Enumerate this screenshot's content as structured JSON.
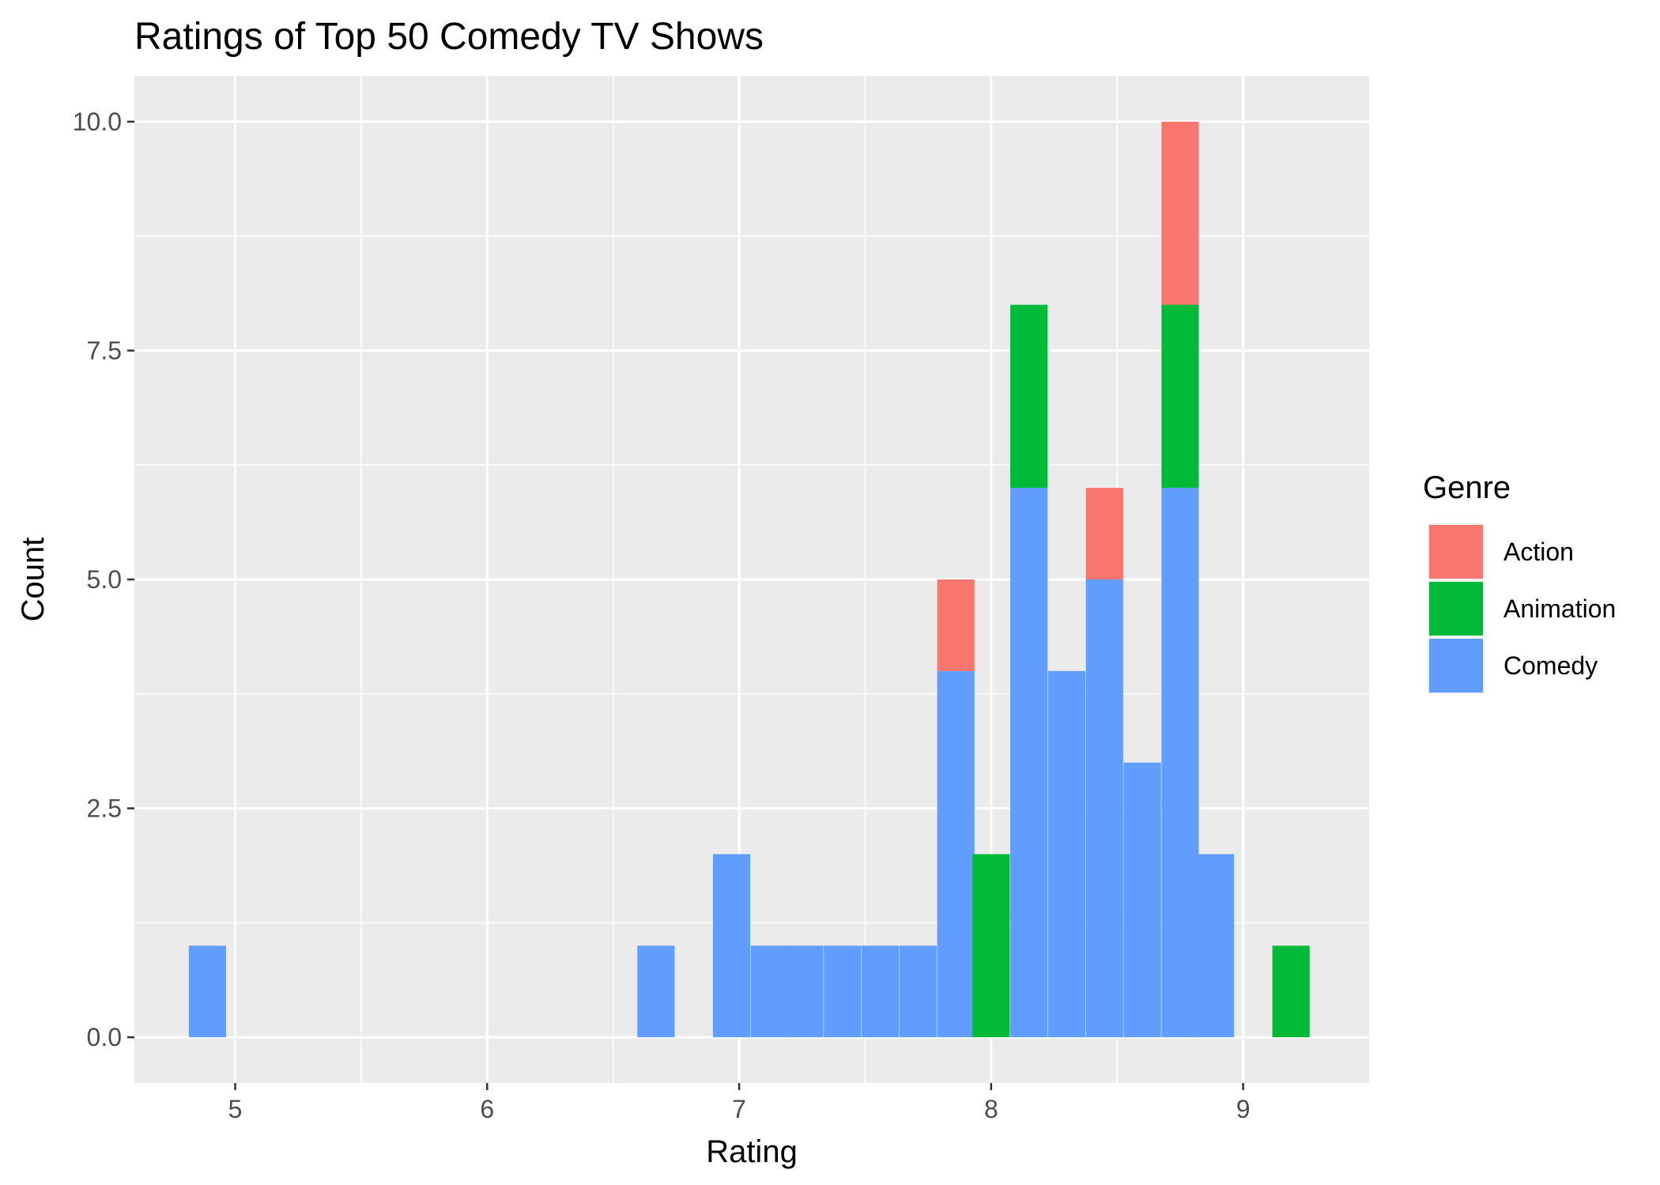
{
  "chart_data": {
    "type": "bar",
    "stacked": true,
    "title": "Ratings of Top 50 Comedy TV Shows",
    "xlabel": "Rating",
    "ylabel": "Count",
    "xlim": [
      4.6,
      9.5
    ],
    "ylim": [
      -0.5,
      10.5
    ],
    "x_ticks": [
      "5",
      "6",
      "7",
      "8",
      "9"
    ],
    "y_ticks": [
      "0.0",
      "2.5",
      "5.0",
      "7.5",
      "10.0"
    ],
    "bin_width": 0.148,
    "bin_centers": [
      4.89,
      6.67,
      6.97,
      7.12,
      7.26,
      7.41,
      7.56,
      7.71,
      7.86,
      8.0,
      8.15,
      8.3,
      8.45,
      8.6,
      8.75,
      8.89,
      9.19
    ],
    "series": [
      {
        "name": "Comedy",
        "color": "#619CFF",
        "values": [
          1,
          1,
          2,
          1,
          1,
          1,
          1,
          1,
          4,
          0,
          6,
          4,
          5,
          3,
          6,
          2,
          0
        ]
      },
      {
        "name": "Animation",
        "color": "#00BA38",
        "values": [
          0,
          0,
          0,
          0,
          0,
          0,
          0,
          0,
          0,
          2,
          2,
          0,
          0,
          0,
          2,
          0,
          1
        ]
      },
      {
        "name": "Action",
        "color": "#F8766D",
        "values": [
          0,
          0,
          0,
          0,
          0,
          0,
          0,
          0,
          1,
          0,
          0,
          0,
          1,
          0,
          2,
          0,
          0
        ]
      }
    ],
    "grid": true,
    "legend": {
      "title": "Genre",
      "position": "right",
      "entries": [
        "Action",
        "Animation",
        "Comedy"
      ]
    }
  }
}
